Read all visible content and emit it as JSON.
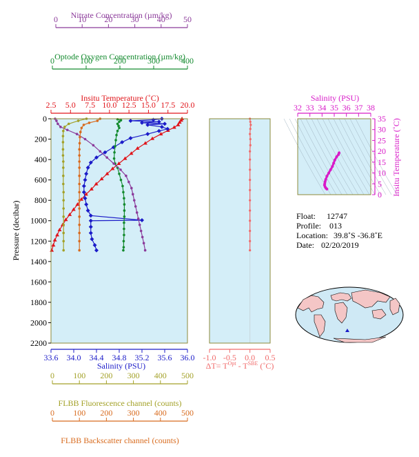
{
  "colors": {
    "nitrate": "#8b3a9a",
    "oxygen": "#138a2e",
    "temperature": "#e0141a",
    "salinity": "#1b1bc8",
    "fluorescence": "#a3a128",
    "backscatter": "#d86b1e",
    "dt": "#f06a6a",
    "ts": "#d81bc8",
    "panel": "#d4eef8",
    "frame": "#8c8a3a",
    "land": "#f4c6c6",
    "ocean": "#cfe9f5"
  },
  "axes": {
    "nitrate": {
      "label": "Nitrate Concentration (µm/kg)",
      "ticks": [
        "0",
        "10",
        "20",
        "30",
        "40",
        "50"
      ]
    },
    "oxygen": {
      "label": "Optode Oxygen Concentration (µm/kg)",
      "ticks": [
        "0",
        "100",
        "200",
        "300",
        "400"
      ]
    },
    "temperature": {
      "label": "Insitu Temperature (˚C)",
      "ticks": [
        "2.5",
        "5.0",
        "7.5",
        "10.0",
        "12.5",
        "15.0",
        "17.5",
        "20.0"
      ]
    },
    "pressure": {
      "label": "Pressure (decibar)",
      "ticks": [
        "0",
        "200",
        "400",
        "600",
        "800",
        "1000",
        "1200",
        "1400",
        "1600",
        "1800",
        "2000",
        "2200"
      ]
    },
    "salinity": {
      "label": "Salinity (PSU)",
      "ticks": [
        "33.6",
        "34.0",
        "34.4",
        "34.8",
        "35.2",
        "35.6",
        "36.0"
      ]
    },
    "fluorescence": {
      "label": "FLBB Fluorescence channel (counts)",
      "ticks": [
        "0",
        "100",
        "200",
        "300",
        "400",
        "500"
      ]
    },
    "backscatter": {
      "label": "FLBB Backscatter channel (counts)",
      "ticks": [
        "0",
        "100",
        "200",
        "300",
        "400",
        "500"
      ]
    },
    "dt": {
      "label_prefix": "ΔT= T",
      "sup1": "Opt",
      "label_mid": " - T",
      "sup2": "SBE",
      "label_suffix": " (˚C)",
      "ticks": [
        "-1.0",
        "-0.5",
        "0.0",
        "0.5"
      ]
    },
    "ts_salinity": {
      "label": "Salinity (PSU)",
      "ticks": [
        "32",
        "33",
        "34",
        "35",
        "36",
        "37",
        "38"
      ]
    },
    "ts_temperature": {
      "label": "Insitu Temperature (˚C)",
      "ticks": [
        "0",
        "5",
        "10",
        "15",
        "20",
        "25",
        "30",
        "35"
      ]
    }
  },
  "info": {
    "float_label": "Float:",
    "float_value": "12747",
    "profile_label": "Profile:",
    "profile_value": "013",
    "location_label": "Location:",
    "location_value": "39.8˚S  -36.8˚E",
    "date_label": "Date:",
    "date_value": "02/20/2019"
  },
  "chart_data": [
    {
      "type": "line",
      "title": "",
      "ylabel": "Pressure (decibar)",
      "ylim": [
        2200,
        0
      ],
      "series": [
        {
          "name": "Insitu Temperature (˚C)",
          "xlim": [
            2.5,
            20.0
          ],
          "points": [
            [
              19.3,
              0
            ],
            [
              19.2,
              15
            ],
            [
              19.0,
              35
            ],
            [
              18.8,
              60
            ],
            [
              18.3,
              85
            ],
            [
              17.5,
              115
            ],
            [
              16.6,
              150
            ],
            [
              15.5,
              195
            ],
            [
              14.6,
              240
            ],
            [
              13.6,
              290
            ],
            [
              12.8,
              340
            ],
            [
              12.0,
              390
            ],
            [
              11.2,
              440
            ],
            [
              10.4,
              490
            ],
            [
              9.7,
              540
            ],
            [
              9.0,
              590
            ],
            [
              8.3,
              640
            ],
            [
              7.7,
              690
            ],
            [
              7.0,
              740
            ],
            [
              6.4,
              790
            ],
            [
              5.9,
              840
            ],
            [
              5.4,
              890
            ],
            [
              4.9,
              940
            ],
            [
              4.4,
              990
            ],
            [
              4.0,
              1040
            ],
            [
              3.6,
              1090
            ],
            [
              3.3,
              1140
            ],
            [
              3.0,
              1190
            ],
            [
              2.8,
              1240
            ],
            [
              2.6,
              1290
            ]
          ]
        },
        {
          "name": "Salinity (PSU)",
          "xlim": [
            33.6,
            36.0
          ],
          "points": [
            [
              35.55,
              0
            ],
            [
              35.4,
              10
            ],
            [
              35.0,
              20
            ],
            [
              35.5,
              30
            ],
            [
              35.2,
              40
            ],
            [
              35.6,
              50
            ],
            [
              35.3,
              60
            ],
            [
              35.55,
              80
            ],
            [
              35.65,
              100
            ],
            [
              35.5,
              120
            ],
            [
              35.3,
              150
            ],
            [
              35.0,
              190
            ],
            [
              34.85,
              230
            ],
            [
              34.7,
              280
            ],
            [
              34.55,
              330
            ],
            [
              34.4,
              380
            ],
            [
              34.3,
              430
            ],
            [
              34.25,
              480
            ],
            [
              34.22,
              540
            ],
            [
              34.2,
              600
            ],
            [
              34.18,
              660
            ],
            [
              34.18,
              720
            ],
            [
              34.2,
              780
            ],
            [
              34.22,
              840
            ],
            [
              34.25,
              900
            ],
            [
              34.3,
              950
            ],
            [
              35.2,
              995
            ],
            [
              34.3,
              1000
            ],
            [
              34.3,
              1060
            ],
            [
              34.3,
              1120
            ],
            [
              34.32,
              1180
            ],
            [
              34.37,
              1240
            ],
            [
              34.4,
              1290
            ]
          ]
        },
        {
          "name": "Optode Oxygen Concentration (µm/kg)",
          "xlim": [
            0,
            400
          ],
          "points": [
            [
              195,
              5
            ],
            [
              205,
              15
            ],
            [
              200,
              30
            ],
            [
              195,
              50
            ],
            [
              198,
              70
            ],
            [
              200,
              90
            ],
            [
              195,
              120
            ],
            [
              192,
              160
            ],
            [
              190,
              210
            ],
            [
              188,
              270
            ],
            [
              186,
              330
            ],
            [
              185,
              390
            ],
            [
              188,
              440
            ],
            [
              195,
              480
            ],
            [
              200,
              540
            ],
            [
              205,
              600
            ],
            [
              210,
              660
            ],
            [
              212,
              720
            ],
            [
              214,
              780
            ],
            [
              215,
              840
            ],
            [
              215,
              900
            ],
            [
              215,
              960
            ],
            [
              214,
              1020
            ],
            [
              214,
              1080
            ],
            [
              214,
              1140
            ],
            [
              213,
              1200
            ],
            [
              213,
              1260
            ],
            [
              212,
              1290
            ]
          ]
        },
        {
          "name": "Nitrate Concentration (µm/kg)",
          "xlim": [
            0,
            50
          ],
          "points": [
            [
              1.5,
              0
            ],
            [
              2,
              20
            ],
            [
              2.5,
              50
            ],
            [
              3.5,
              80
            ],
            [
              6,
              110
            ],
            [
              9.5,
              150
            ],
            [
              12.5,
              200
            ],
            [
              15.5,
              260
            ],
            [
              18,
              320
            ],
            [
              20.5,
              380
            ],
            [
              23,
              440
            ],
            [
              25.5,
              500
            ],
            [
              27.5,
              560
            ],
            [
              28.5,
              620
            ],
            [
              29.5,
              680
            ],
            [
              30,
              740
            ],
            [
              30.5,
              800
            ],
            [
              31,
              860
            ],
            [
              31.5,
              920
            ],
            [
              32,
              980
            ],
            [
              32.5,
              1040
            ],
            [
              33,
              1100
            ],
            [
              33.5,
              1160
            ],
            [
              34,
              1220
            ],
            [
              34.5,
              1290
            ]
          ]
        },
        {
          "name": "FLBB Fluorescence channel (counts)",
          "xlim": [
            0,
            500
          ],
          "points": [
            [
              130,
              0
            ],
            [
              100,
              20
            ],
            [
              65,
              50
            ],
            [
              50,
              80
            ],
            [
              45,
              120
            ],
            [
              44,
              170
            ],
            [
              44,
              230
            ],
            [
              44,
              300
            ],
            [
              44,
              360
            ],
            [
              45,
              420
            ],
            [
              45,
              480
            ],
            [
              45,
              560
            ],
            [
              45,
              640
            ],
            [
              46,
              720
            ],
            [
              46,
              800
            ],
            [
              46,
              880
            ],
            [
              46,
              960
            ],
            [
              46,
              1040
            ],
            [
              46,
              1120
            ],
            [
              46,
              1200
            ],
            [
              46,
              1290
            ]
          ]
        },
        {
          "name": "FLBB Backscatter channel (counts)",
          "xlim": [
            0,
            500
          ],
          "points": [
            [
              180,
              0
            ],
            [
              170,
              20
            ],
            [
              140,
              40
            ],
            [
              120,
              60
            ],
            [
              112,
              90
            ],
            [
              108,
              130
            ],
            [
              106,
              180
            ],
            [
              105,
              240
            ],
            [
              104,
              300
            ],
            [
              104,
              360
            ],
            [
              104,
              420
            ],
            [
              104,
              480
            ],
            [
              104,
              560
            ],
            [
              104,
              640
            ],
            [
              104,
              720
            ],
            [
              104,
              800
            ],
            [
              104,
              880
            ],
            [
              104,
              960
            ],
            [
              104,
              1040
            ],
            [
              104,
              1120
            ],
            [
              104,
              1200
            ],
            [
              104,
              1290
            ]
          ]
        }
      ]
    },
    {
      "type": "line",
      "xlabel": "ΔT= TOpt - TSBE (˚C)",
      "xlim": [
        -1.0,
        0.5
      ],
      "ylim": [
        2200,
        0
      ],
      "series": [
        {
          "name": "ΔT",
          "points": [
            [
              0.0,
              0
            ],
            [
              0.01,
              30
            ],
            [
              0.02,
              60
            ],
            [
              0.01,
              100
            ],
            [
              0.0,
              150
            ],
            [
              0.01,
              200
            ],
            [
              0.01,
              260
            ],
            [
              0.0,
              320
            ],
            [
              0.0,
              400
            ],
            [
              0.0,
              500
            ],
            [
              0.0,
              600
            ],
            [
              0.0,
              700
            ],
            [
              0.0,
              800
            ],
            [
              0.0,
              900
            ],
            [
              0.0,
              1000
            ],
            [
              0.0,
              1100
            ],
            [
              0.0,
              1200
            ],
            [
              0.0,
              1290
            ]
          ]
        }
      ]
    },
    {
      "type": "scatter",
      "xlabel": "Salinity (PSU)",
      "ylabel": "Insitu Temperature (˚C)",
      "xlim": [
        32,
        38
      ],
      "ylim": [
        0,
        35
      ],
      "series": [
        {
          "name": "T-S",
          "points": [
            [
              35.4,
              19.3
            ],
            [
              35.35,
              18.5
            ],
            [
              35.2,
              17.5
            ],
            [
              35.05,
              16
            ],
            [
              34.95,
              14.5
            ],
            [
              34.85,
              13
            ],
            [
              34.7,
              11.5
            ],
            [
              34.55,
              10
            ],
            [
              34.4,
              8.5
            ],
            [
              34.3,
              7
            ],
            [
              34.25,
              6
            ],
            [
              34.22,
              5
            ],
            [
              34.2,
              4.4
            ],
            [
              34.25,
              3.6
            ],
            [
              34.32,
              3.0
            ],
            [
              34.4,
              2.6
            ]
          ]
        }
      ]
    }
  ]
}
